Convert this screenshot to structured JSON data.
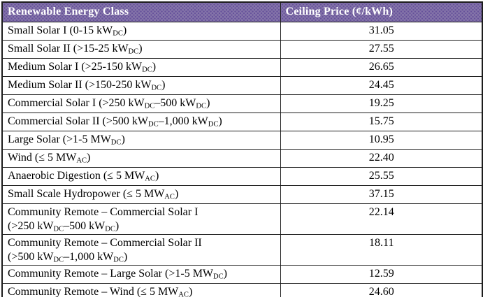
{
  "colors": {
    "header_bg": "#8575a9",
    "header_dot": "#66519b",
    "header_text": "#ffffff",
    "border": "#1c1c1c",
    "row_bg": "#ffffff",
    "text": "#000000"
  },
  "table": {
    "headers": [
      {
        "label": "Renewable Energy Class"
      },
      {
        "label": "Ceiling Price (¢/kWh)"
      }
    ],
    "rows": [
      {
        "class_segments": [
          {
            "t": "Small Solar I (0-15 kW"
          },
          {
            "t": "DC",
            "sub": true
          },
          {
            "t": ")"
          }
        ],
        "price": "31.05"
      },
      {
        "class_segments": [
          {
            "t": "Small Solar II (>15-25 kW"
          },
          {
            "t": "DC",
            "sub": true
          },
          {
            "t": ")"
          }
        ],
        "price": "27.55"
      },
      {
        "class_segments": [
          {
            "t": "Medium Solar I (>25-150 kW"
          },
          {
            "t": "DC",
            "sub": true
          },
          {
            "t": ")"
          }
        ],
        "price": "26.65"
      },
      {
        "class_segments": [
          {
            "t": "Medium Solar II (>150-250 kW"
          },
          {
            "t": "DC",
            "sub": true
          },
          {
            "t": ")"
          }
        ],
        "price": "24.45"
      },
      {
        "class_segments": [
          {
            "t": "Commercial Solar I (>250 kW"
          },
          {
            "t": "DC",
            "sub": true
          },
          {
            "t": "–500 kW"
          },
          {
            "t": "DC",
            "sub": true
          },
          {
            "t": ")"
          }
        ],
        "price": "19.25"
      },
      {
        "class_segments": [
          {
            "t": "Commercial Solar II (>500 kW"
          },
          {
            "t": "DC",
            "sub": true
          },
          {
            "t": "–1,000 kW"
          },
          {
            "t": "DC",
            "sub": true
          },
          {
            "t": ")"
          }
        ],
        "price": "15.75"
      },
      {
        "class_segments": [
          {
            "t": "Large Solar (>1-5 MW"
          },
          {
            "t": "DC",
            "sub": true
          },
          {
            "t": ")"
          }
        ],
        "price": "10.95"
      },
      {
        "class_segments": [
          {
            "t": "Wind (≤ 5 MW"
          },
          {
            "t": "AC",
            "sub": true
          },
          {
            "t": ")"
          }
        ],
        "price": "22.40"
      },
      {
        "class_segments": [
          {
            "t": "Anaerobic Digestion (≤ 5 MW"
          },
          {
            "t": "AC",
            "sub": true
          },
          {
            "t": ")"
          }
        ],
        "price": "25.55"
      },
      {
        "class_segments": [
          {
            "t": "Small Scale Hydropower (≤ 5 MW"
          },
          {
            "t": "AC",
            "sub": true
          },
          {
            "t": ")"
          }
        ],
        "price": "37.15"
      },
      {
        "class_segments": [
          {
            "t": "Community Remote – Commercial Solar I"
          },
          {
            "br": true
          },
          {
            "t": "(>250 kW"
          },
          {
            "t": "DC",
            "sub": true
          },
          {
            "t": "–500 kW"
          },
          {
            "t": "DC",
            "sub": true
          },
          {
            "t": ")"
          }
        ],
        "price": "22.14"
      },
      {
        "class_segments": [
          {
            "t": "Community Remote – Commercial Solar II"
          },
          {
            "br": true
          },
          {
            "t": "(>500 kW"
          },
          {
            "t": "DC",
            "sub": true
          },
          {
            "t": "–1,000 kW"
          },
          {
            "t": "DC",
            "sub": true
          },
          {
            "t": ")"
          }
        ],
        "price": "18.11"
      },
      {
        "class_segments": [
          {
            "t": "Community Remote – Large Solar (>1-5 MW"
          },
          {
            "t": "DC",
            "sub": true
          },
          {
            "t": ")"
          }
        ],
        "price": "12.59"
      },
      {
        "class_segments": [
          {
            "t": "Community Remote – Wind (≤ 5 MW"
          },
          {
            "t": "AC",
            "sub": true
          },
          {
            "t": ")"
          }
        ],
        "price": "24.60"
      }
    ]
  }
}
